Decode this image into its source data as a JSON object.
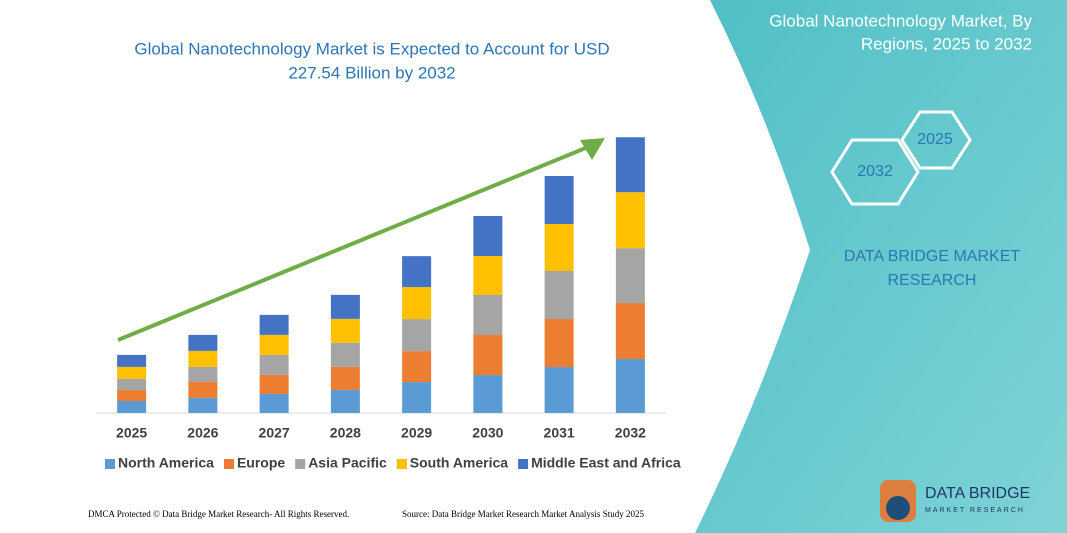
{
  "chart_data": {
    "type": "bar",
    "stacked": true,
    "title": [
      "Global Nanotechnology Market is Expected to Account for USD",
      "227.54 Billion by 2032"
    ],
    "categories": [
      "2025",
      "2026",
      "2027",
      "2028",
      "2029",
      "2030",
      "2031",
      "2032"
    ],
    "series": [
      {
        "name": "North America",
        "color": "#5b9bd5",
        "values": [
          9.9,
          12.4,
          15.7,
          19.0,
          25.5,
          31.3,
          37.9,
          44.5
        ]
      },
      {
        "name": "Europe",
        "color": "#ed7d31",
        "values": [
          9.1,
          13.2,
          15.7,
          19.0,
          25.5,
          33.0,
          39.6,
          46.1
        ]
      },
      {
        "name": "Asia Pacific",
        "color": "#a5a5a5",
        "values": [
          9.1,
          12.4,
          16.5,
          19.8,
          26.4,
          33.0,
          39.6,
          45.3
        ]
      },
      {
        "name": "South America",
        "color": "#ffc000",
        "values": [
          9.9,
          13.2,
          16.5,
          19.8,
          26.4,
          32.1,
          38.7,
          46.1
        ]
      },
      {
        "name": "Middle East and Africa",
        "color": "#4472c4",
        "values": [
          9.9,
          13.2,
          16.5,
          19.8,
          25.5,
          33.0,
          39.6,
          45.3
        ]
      }
    ],
    "ylim": [
      0,
      230
    ]
  },
  "panel": {
    "title": [
      "Global Nanotechnology Market, By",
      "Regions, 2025 to 2032"
    ],
    "hex_labels": [
      "2025",
      "2032"
    ],
    "brand": [
      "DATA BRIDGE MARKET",
      "RESEARCH"
    ],
    "logo": [
      "DATA BRIDGE",
      "MARKET RESEARCH"
    ]
  },
  "footer": {
    "left": "DMCA Protected © Data Bridge Market Research- All Rights Reserved.",
    "right": "Source: Data Bridge Market Research Market Analysis Study 2025"
  }
}
